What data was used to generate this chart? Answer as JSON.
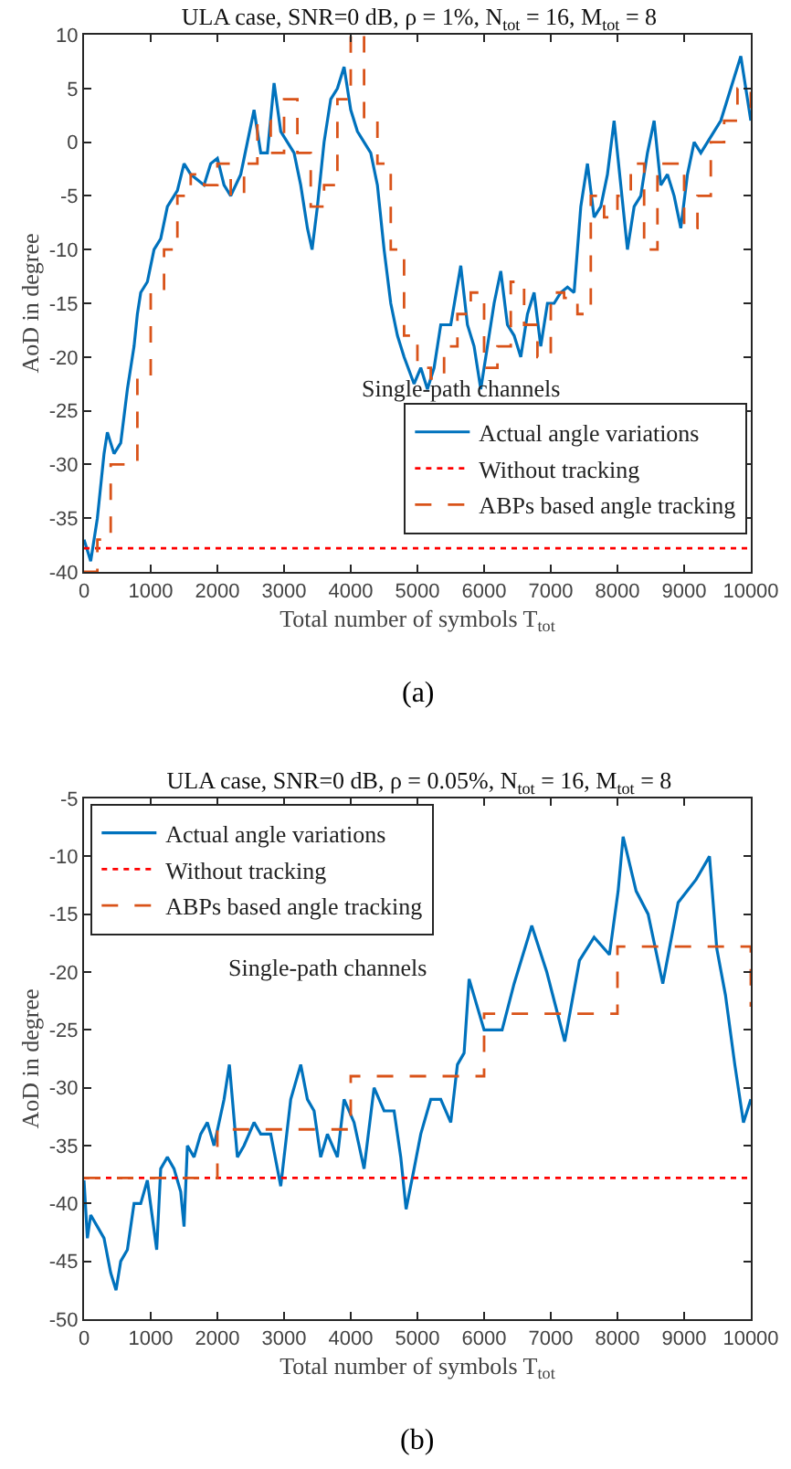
{
  "chart_data": [
    {
      "type": "line",
      "title": "ULA case, SNR=0 dB, ρ = 1%, N$_{tot}$ = 16, M$_{tot}$ = 8",
      "xlabel": "Total number of symbols T$_{tot}$",
      "ylabel": "AoD in degree",
      "xlim": [
        0,
        10000
      ],
      "xticks": [
        0,
        1000,
        2000,
        3000,
        4000,
        5000,
        6000,
        7000,
        8000,
        9000,
        10000
      ],
      "ylim": [
        -40,
        10
      ],
      "yticks": [
        -40,
        -35,
        -30,
        -25,
        -20,
        -15,
        -10,
        -5,
        0,
        5,
        10
      ],
      "legend": "bottom right",
      "annotations": [
        "Single-path channels",
        "(a)"
      ],
      "series": [
        {
          "name": "Actual angle variations",
          "type": "line",
          "color": "#0072bd",
          "line_style": "solid",
          "x": [
            0,
            100,
            200,
            300,
            350,
            450,
            550,
            650,
            750,
            800,
            850,
            950,
            1050,
            1150,
            1250,
            1400,
            1500,
            1600,
            1700,
            1800,
            1900,
            2000,
            2100,
            2200,
            2350,
            2450,
            2550,
            2650,
            2750,
            2850,
            2950,
            3050,
            3150,
            3250,
            3350,
            3420,
            3500,
            3600,
            3700,
            3800,
            3900,
            4000,
            4100,
            4200,
            4300,
            4400,
            4500,
            4600,
            4700,
            4800,
            4950,
            5050,
            5150,
            5250,
            5350,
            5500,
            5650,
            5750,
            5850,
            5950,
            6050,
            6150,
            6250,
            6350,
            6450,
            6550,
            6650,
            6750,
            6850,
            6950,
            7050,
            7150,
            7250,
            7350,
            7450,
            7550,
            7650,
            7750,
            7850,
            7950,
            8050,
            8150,
            8250,
            8350,
            8450,
            8550,
            8650,
            8750,
            8850,
            8950,
            9050,
            9150,
            9250,
            9350,
            9450,
            9550,
            9650,
            9750,
            9850,
            9950,
            10000
          ],
          "values": [
            -37,
            -39,
            -35,
            -29,
            -27,
            -29,
            -28,
            -23,
            -19,
            -16,
            -14,
            -13,
            -10,
            -9,
            -6,
            -4.5,
            -2,
            -3,
            -3.5,
            -4,
            -2,
            -1.5,
            -4,
            -5,
            -3,
            0,
            3,
            -1,
            -1,
            5.5,
            1,
            0,
            -1,
            -4,
            -8,
            -10,
            -6,
            0,
            4,
            5,
            7,
            3,
            1,
            0,
            -1,
            -4,
            -10,
            -15,
            -18,
            -20,
            -22.5,
            -21,
            -23,
            -21,
            -17,
            -17,
            -11.5,
            -17,
            -19,
            -23,
            -19,
            -15,
            -12,
            -17,
            -18,
            -20,
            -16,
            -14,
            -19,
            -15,
            -15,
            -14,
            -13.5,
            -14,
            -6,
            -2,
            -7,
            -6,
            -3,
            2,
            -4,
            -10,
            -6,
            -5,
            -1,
            2,
            -4,
            -3,
            -5,
            -8,
            -3,
            0,
            -1,
            0,
            1,
            2,
            4,
            6,
            8,
            4,
            2
          ]
        },
        {
          "name": "Without tracking",
          "type": "line",
          "color": "#ff0000",
          "line_style": "dotted",
          "x": [
            0,
            10000
          ],
          "values": [
            -37.8,
            -37.8
          ]
        },
        {
          "name": "ABPs based angle tracking",
          "type": "step",
          "color": "#d95319",
          "line_style": "dashed",
          "x": [
            0,
            200,
            400,
            600,
            800,
            1000,
            1200,
            1400,
            1600,
            1800,
            2000,
            2200,
            2400,
            2600,
            2800,
            3000,
            3200,
            3400,
            3600,
            3800,
            4000,
            4200,
            4400,
            4600,
            4800,
            5000,
            5200,
            5400,
            5600,
            5800,
            6000,
            6200,
            6400,
            6600,
            6800,
            7000,
            7200,
            7400,
            7600,
            7800,
            8000,
            8200,
            8400,
            8600,
            8800,
            9000,
            9200,
            9400,
            9600,
            9800,
            10000
          ],
          "values": [
            -40,
            -37,
            -30,
            -30,
            -22,
            -14,
            -10,
            -5,
            -3,
            -4,
            -2,
            -5,
            -2,
            2,
            -1,
            4,
            -1,
            -6,
            -4,
            4,
            10,
            2,
            -2,
            -10,
            -18,
            -21,
            -22,
            -19,
            -16,
            -14,
            -21,
            -19,
            -13,
            -17,
            -20,
            -14,
            -14.5,
            -16,
            -5,
            -7,
            -5,
            -2,
            -10,
            -2,
            -2,
            -8,
            -5,
            0,
            2,
            5,
            2
          ]
        }
      ]
    },
    {
      "type": "line",
      "title": "ULA case, SNR=0 dB, ρ = 0.05%, N$_{tot}$ = 16, M$_{tot}$ = 8",
      "xlabel": "Total number of symbols T$_{tot}$",
      "ylabel": "AoD in degree",
      "xlim": [
        0,
        10000
      ],
      "xticks": [
        0,
        1000,
        2000,
        3000,
        4000,
        5000,
        6000,
        7000,
        8000,
        9000,
        10000
      ],
      "ylim": [
        -50,
        -5
      ],
      "yticks": [
        -50,
        -45,
        -40,
        -35,
        -30,
        -25,
        -20,
        -15,
        -10,
        -5
      ],
      "legend": "top left",
      "annotations": [
        "Single-path channels",
        "(b)"
      ],
      "series": [
        {
          "name": "Actual angle variations",
          "type": "line",
          "color": "#0072bd",
          "line_style": "solid",
          "x": [
            0,
            50,
            100,
            200,
            300,
            400,
            480,
            550,
            650,
            750,
            850,
            950,
            1090,
            1150,
            1250,
            1350,
            1450,
            1500,
            1550,
            1650,
            1750,
            1850,
            1950,
            2100,
            2180,
            2300,
            2400,
            2550,
            2650,
            2800,
            2950,
            3100,
            3250,
            3350,
            3450,
            3550,
            3650,
            3800,
            3900,
            4050,
            4200,
            4350,
            4500,
            4650,
            4750,
            4830,
            4950,
            5050,
            5200,
            5350,
            5500,
            5600,
            5700,
            5775,
            6000,
            6270,
            6450,
            6715,
            6940,
            7210,
            7430,
            7650,
            7880,
            8010,
            8085,
            8280,
            8460,
            8680,
            8910,
            9180,
            9380,
            9490,
            9620,
            9760,
            9890,
            10000
          ],
          "values": [
            -38,
            -43,
            -41,
            -42,
            -43,
            -46,
            -47.5,
            -45,
            -44,
            -40,
            -40,
            -38,
            -44,
            -37,
            -36,
            -37,
            -39,
            -42,
            -35,
            -36,
            -34,
            -33,
            -35,
            -31,
            -28,
            -36,
            -35,
            -33,
            -34,
            -34,
            -38.5,
            -31,
            -28,
            -31,
            -32,
            -36,
            -34,
            -36,
            -31,
            -33,
            -37,
            -30,
            -32,
            -32,
            -36,
            -40.5,
            -37,
            -34,
            -31,
            -31,
            -33,
            -28,
            -27,
            -20.6,
            -25,
            -25,
            -21,
            -16,
            -20,
            -26,
            -19,
            -17,
            -18.5,
            -13,
            -8.3,
            -13,
            -15,
            -21,
            -14,
            -12,
            -10,
            -18,
            -22,
            -28,
            -33,
            -31
          ]
        },
        {
          "name": "Without tracking",
          "type": "line",
          "color": "#ff0000",
          "line_style": "dotted",
          "x": [
            0,
            10000
          ],
          "values": [
            -37.8,
            -37.8
          ]
        },
        {
          "name": "ABPs based angle tracking",
          "type": "step",
          "color": "#d95319",
          "line_style": "dashed",
          "x": [
            0,
            2000,
            4000,
            6000,
            8000,
            10000
          ],
          "values": [
            -37.8,
            -33.6,
            -29,
            -23.6,
            -17.8,
            -23
          ]
        }
      ]
    }
  ]
}
